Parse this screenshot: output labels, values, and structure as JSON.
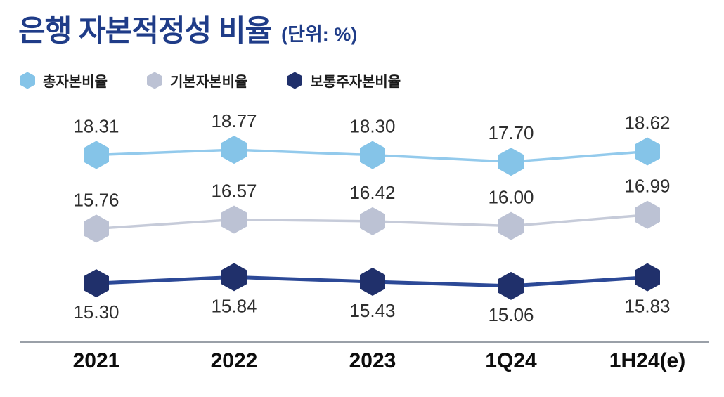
{
  "title": {
    "text": "은행 자본적정성 비율",
    "unit": "(단위: %)"
  },
  "legend": [
    {
      "label": "총자본비율",
      "color": "#85C4E8"
    },
    {
      "label": "기본자본비율",
      "color": "#BCC2D4"
    },
    {
      "label": "보통주자본비율",
      "color": "#20306B"
    }
  ],
  "chart_data": {
    "type": "line",
    "title": "은행 자본적정성 비율",
    "unit": "%",
    "categories": [
      "2021",
      "2022",
      "2023",
      "1Q24",
      "1H24(e)"
    ],
    "series": [
      {
        "name": "총자본비율",
        "values": [
          18.31,
          18.77,
          18.3,
          17.7,
          18.62
        ],
        "marker_color": "#85C4E8",
        "line_color": "#93CAEC",
        "line_width": 3.5,
        "label_side": "above"
      },
      {
        "name": "기본자본비율",
        "values": [
          15.76,
          16.57,
          16.42,
          16.0,
          16.99
        ],
        "marker_color": "#BCC2D4",
        "line_color": "#C6CBD9",
        "line_width": 3.5,
        "label_side": "above"
      },
      {
        "name": "보통주자본비율",
        "values": [
          15.3,
          15.84,
          15.43,
          15.06,
          15.83
        ],
        "marker_color": "#20306B",
        "line_color": "#2C4997",
        "line_width": 5,
        "label_side": "below"
      }
    ],
    "marker_shape": "hexagon",
    "grid": false,
    "legend_position": "top-left",
    "x_axis_line": true,
    "value_labels_shown": true
  }
}
